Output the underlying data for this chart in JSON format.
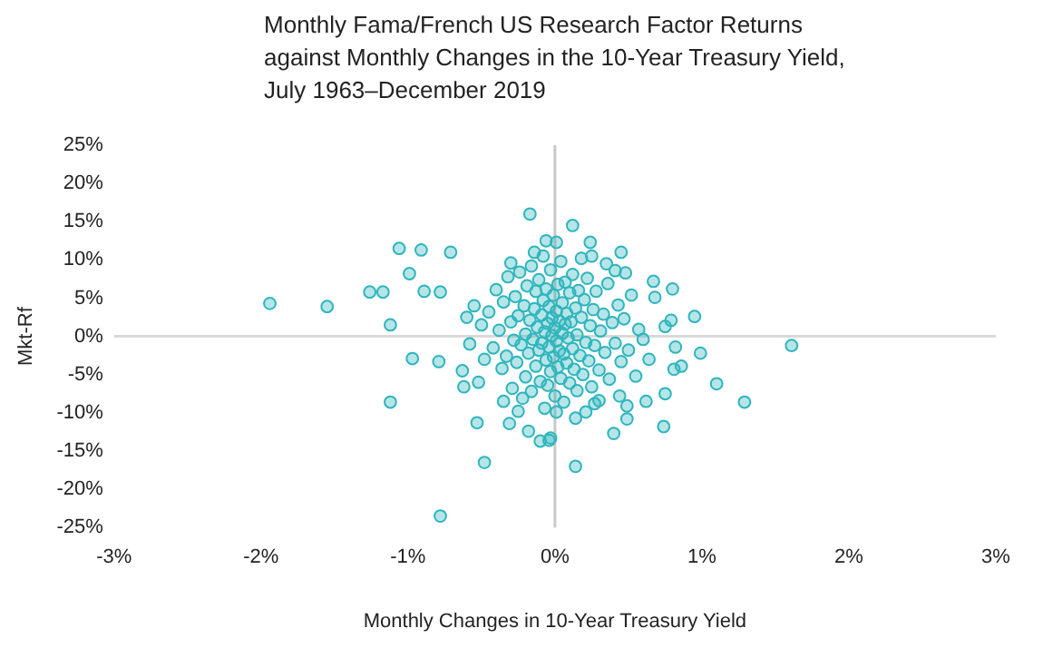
{
  "chart_data": {
    "type": "scatter",
    "title": "Monthly Fama/French US Research Factor Returns\nagainst Monthly Changes in the 10-Year Treasury Yield,\nJuly 1963–December 2019",
    "xlabel": "Monthly Changes in 10-Year Treasury Yield",
    "ylabel": "Mkt-Rf",
    "color": "#2fb5bd",
    "marker": "circle",
    "grid": false,
    "xlim": [
      -3,
      3
    ],
    "xticks": [
      {
        "value": -3,
        "label": "-3%"
      },
      {
        "value": -2,
        "label": "-2%"
      },
      {
        "value": -1,
        "label": "-1%"
      },
      {
        "value": 0,
        "label": "0%"
      },
      {
        "value": 1,
        "label": "1%"
      },
      {
        "value": 2,
        "label": "2%"
      },
      {
        "value": 3,
        "label": "3%"
      }
    ],
    "ylim": [
      -25,
      25
    ],
    "yticks": [
      {
        "value": -25,
        "label": "-25%"
      },
      {
        "value": -20,
        "label": "-20%"
      },
      {
        "value": -15,
        "label": "-15%"
      },
      {
        "value": -10,
        "label": "-10%"
      },
      {
        "value": -5,
        "label": "-5%"
      },
      {
        "value": 0,
        "label": "0%"
      },
      {
        "value": 5,
        "label": "5%"
      },
      {
        "value": 10,
        "label": "10%"
      },
      {
        "value": 15,
        "label": "15%"
      },
      {
        "value": 20,
        "label": "20%"
      },
      {
        "value": 25,
        "label": "25%"
      }
    ],
    "ref_lines": [
      {
        "axis": "x",
        "value": 0,
        "color": "#c8c8c8"
      },
      {
        "axis": "y",
        "value": 0,
        "color": "#d9d9d9"
      }
    ],
    "x": [
      -1.94,
      -1.55,
      -1.26,
      -1.17,
      -1.06,
      -0.91,
      -0.71,
      -0.99,
      -0.89,
      -0.78,
      -1.12,
      -0.97,
      -0.79,
      -1.12,
      -0.62,
      -0.53,
      -0.48,
      -0.78,
      -0.17,
      -0.06,
      0.01,
      -0.14,
      -0.18,
      -0.1,
      -0.03,
      -0.31,
      0.12,
      0.24,
      0.25,
      0.45,
      0.41,
      0.48,
      0.67,
      0.8,
      0.68,
      0.95,
      0.79,
      0.75,
      0.82,
      0.99,
      1.61,
      1.1,
      1.29,
      0.86,
      0.81,
      0.75,
      0.62,
      0.74,
      0.49,
      0.4,
      0.44,
      0.49,
      0.14,
      -0.04,
      0.14,
      0.01,
      0.3,
      0.21,
      0.6,
      0.64,
      -0.45,
      -0.42,
      -0.4,
      -0.38,
      -0.36,
      -0.35,
      -0.33,
      -0.32,
      -0.3,
      -0.29,
      -0.28,
      -0.27,
      -0.26,
      -0.25,
      -0.24,
      -0.23,
      -0.22,
      -0.21,
      -0.2,
      -0.2,
      -0.19,
      -0.18,
      -0.17,
      -0.16,
      -0.16,
      -0.15,
      -0.14,
      -0.13,
      -0.13,
      -0.12,
      -0.11,
      -0.11,
      -0.1,
      -0.09,
      -0.09,
      -0.08,
      -0.07,
      -0.07,
      -0.06,
      -0.06,
      -0.05,
      -0.05,
      -0.04,
      -0.04,
      -0.03,
      -0.03,
      -0.02,
      -0.02,
      -0.01,
      -0.01,
      0,
      0,
      0.01,
      0.01,
      0.02,
      0.02,
      0.03,
      0.03,
      0.04,
      0.04,
      0.05,
      0.05,
      0.06,
      0.06,
      0.07,
      0.07,
      0.08,
      0.08,
      0.09,
      0.1,
      0.1,
      0.11,
      0.12,
      0.12,
      0.13,
      0.14,
      0.15,
      0.15,
      0.16,
      0.17,
      0.18,
      0.19,
      0.2,
      0.21,
      0.22,
      0.23,
      0.24,
      0.25,
      0.26,
      0.27,
      0.28,
      0.3,
      0.31,
      0.33,
      0.34,
      0.36,
      0.37,
      0.39,
      0.41,
      0.43,
      0.45,
      0.47,
      0.5,
      0.52,
      0.55,
      0.57,
      -0.48,
      -0.5,
      -0.52,
      -0.55,
      -0.58,
      -0.6,
      -0.63,
      -0.35,
      -0.25,
      0.27,
      0.35,
      -0.08,
      0.18,
      -0.3
    ],
    "values": [
      4.3,
      3.9,
      5.8,
      5.8,
      11.5,
      11.3,
      11,
      8.2,
      5.9,
      5.8,
      1.5,
      -2.9,
      -3.3,
      -8.6,
      -6.6,
      -11.3,
      -16.5,
      -23.5,
      16,
      12.5,
      12.3,
      11,
      -12.4,
      -13.7,
      -13.3,
      -11.4,
      14.5,
      12.3,
      10.5,
      11,
      8.6,
      8.3,
      7.2,
      6.2,
      5.1,
      2.6,
      2.1,
      1.3,
      -1.4,
      -2.2,
      -1.2,
      -6.2,
      -8.6,
      -3.9,
      -4.3,
      -7.5,
      -8.5,
      -11.8,
      -10.8,
      -12.7,
      -7.8,
      -9.1,
      -17,
      -13.6,
      -10.7,
      -9.9,
      -8.4,
      -9.9,
      -0.4,
      -3,
      3.2,
      -1.5,
      6.1,
      0.8,
      -4.2,
      4.5,
      -2.6,
      7.8,
      1.9,
      -6.8,
      -0.5,
      5.2,
      -3.4,
      2.7,
      8.4,
      -1.1,
      -8.1,
      4,
      0.3,
      -5.3,
      6.6,
      -2.2,
      2.1,
      9.2,
      -7.2,
      -0.4,
      3.6,
      -3.9,
      5.9,
      1.2,
      -1.8,
      7.4,
      -5.9,
      2.8,
      -0.9,
      4.7,
      -9.4,
      0.6,
      -3.1,
      6.2,
      1.7,
      -6.4,
      3.9,
      -1.4,
      8.7,
      -4.6,
      0.1,
      2.4,
      -2.7,
      5.4,
      -7.8,
      1.1,
      -0.6,
      3.3,
      -4,
      6.8,
      -1.9,
      2,
      9.8,
      -5.5,
      0.4,
      4.4,
      -2.3,
      -8.6,
      1.6,
      7.1,
      -3.5,
      3,
      -0.2,
      5.7,
      -6.1,
      1.9,
      -1.6,
      8.1,
      -4.3,
      3.7,
      0.2,
      -7.1,
      6,
      -2.5,
      2.5,
      -5,
      4.8,
      -0.8,
      7.6,
      -3.2,
      1.4,
      -6.6,
      3.5,
      -1.2,
      5.9,
      -4.4,
      0.7,
      2.9,
      -2.1,
      6.9,
      -5.6,
      1.8,
      -0.9,
      4.1,
      -3.3,
      2.3,
      -1.8,
      5.4,
      -5.2,
      0.9,
      -3,
      1.5,
      -6,
      4,
      -1,
      2.5,
      -4.5,
      -8.5,
      -9.8,
      -8.8,
      9.5,
      10.5,
      10.2,
      9.6
    ]
  }
}
